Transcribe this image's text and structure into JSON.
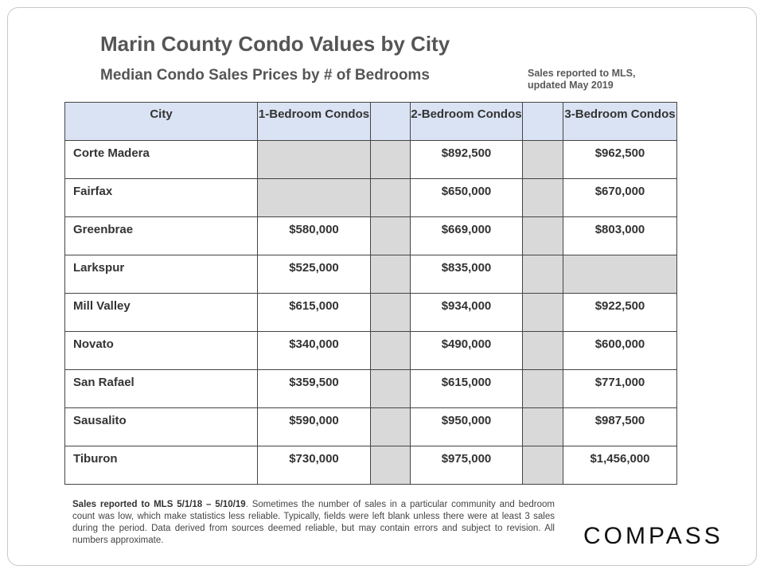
{
  "title": "Marin County Condo Values by City",
  "subtitle": "Median Condo Sales Prices by # of Bedrooms",
  "note": "Sales reported to MLS, updated May 2019",
  "table": {
    "headers": {
      "city": "City",
      "bed1": "1-Bedroom Condos",
      "bed2": "2-Bedroom Condos",
      "bed3": "3-Bedroom Condos"
    },
    "rows": [
      {
        "city": "Corte Madera",
        "bed1": "",
        "bed2": "$892,500",
        "bed3": "$962,500"
      },
      {
        "city": "Fairfax",
        "bed1": "",
        "bed2": "$650,000",
        "bed3": "$670,000"
      },
      {
        "city": "Greenbrae",
        "bed1": "$580,000",
        "bed2": "$669,000",
        "bed3": "$803,000"
      },
      {
        "city": "Larkspur",
        "bed1": "$525,000",
        "bed2": "$835,000",
        "bed3": ""
      },
      {
        "city": "Mill Valley",
        "bed1": "$615,000",
        "bed2": "$934,000",
        "bed3": "$922,500"
      },
      {
        "city": "Novato",
        "bed1": "$340,000",
        "bed2": "$490,000",
        "bed3": "$600,000"
      },
      {
        "city": "San Rafael",
        "bed1": "$359,500",
        "bed2": "$615,000",
        "bed3": "$771,000"
      },
      {
        "city": "Sausalito",
        "bed1": "$590,000",
        "bed2": "$950,000",
        "bed3": "$987,500"
      },
      {
        "city": "Tiburon",
        "bed1": "$730,000",
        "bed2": "$975,000",
        "bed3": "$1,456,000"
      }
    ]
  },
  "footer": {
    "bold": "Sales reported to MLS 5/1/18 – 5/10/19",
    "text": ". Sometimes the number of sales in a particular community and bedroom count was low, which make statistics less reliable. Typically, fields were left blank unless there were at least 3 sales during the period. Data derived from sources deemed reliable, but may contain errors and subject to revision.  All numbers approximate."
  },
  "logo": "COMPASS"
}
